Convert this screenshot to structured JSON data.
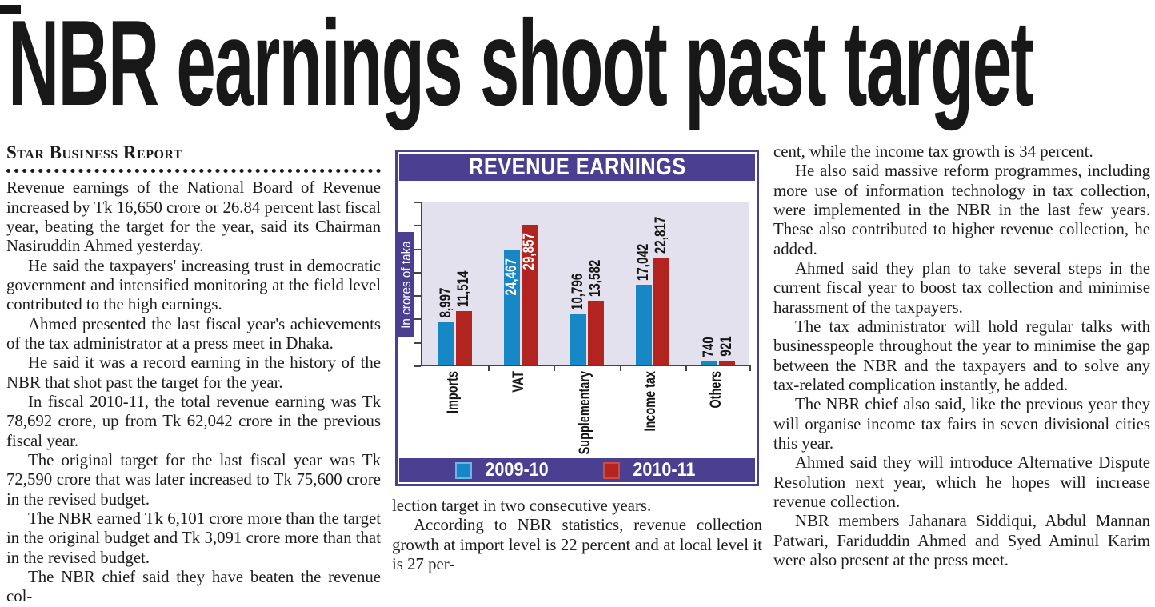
{
  "page": {
    "headline": "NBR earnings shoot past target",
    "byline": "Star Business Report"
  },
  "article": {
    "left_column": [
      "Revenue earnings of the National Board of Revenue increased by Tk 16,650 crore or 26.84 percent last fiscal year, beating the target for the year, said its Chairman Nasiruddin Ahmed yesterday.",
      "He said the taxpayers' increasing trust in democratic government and intensified monitoring at the field level contributed to the high earnings.",
      "Ahmed presented the last fiscal year's achievements of the tax administrator at a press meet in Dhaka.",
      "He said it was a record earning in the history of the NBR that shot past the target for the year.",
      "In fiscal 2010-11, the total revenue earning was Tk 78,692 crore, up from Tk 62,042 crore in the previous fiscal year.",
      "The original target for the last fiscal year was Tk 72,590 crore that was later increased to Tk 75,600 crore in the revised budget.",
      "The NBR earned Tk 6,101 crore more than the target in the original budget and Tk 3,091 crore more than that in the revised budget.",
      "The NBR chief said they have beaten the revenue col-"
    ],
    "middle_column": [
      "lection target in two consecutive years.",
      "According to NBR statistics, revenue collection growth at import level is 22 percent and at local level it is 27 per-"
    ],
    "right_column": [
      "cent, while the income tax growth is 34 percent.",
      "He also said massive reform programmes, including more use of information technology in tax collection, were implemented in the NBR in the last few years. These also contributed to higher revenue collection, he added.",
      "Ahmed said they plan to take several steps in the current fiscal year to boost tax collection and minimise harassment of the taxpayers.",
      "The tax administrator will hold regular talks with businesspeople throughout the year to minimise the gap between the NBR and the taxpayers and to solve any tax-related complication instantly, he added.",
      "The NBR chief also said, like the previous year they will organise income tax fairs in seven divisional cities this year.",
      "Ahmed said they will introduce Alternative Dispute Resolution next year, which he hopes will increase revenue collection.",
      "NBR members Jahanara Siddiqui, Abdul Mannan Patwari, Fariduddin Ahmed and Syed Aminul Karim were also present at the press meet."
    ]
  },
  "chart_data": {
    "type": "bar",
    "title": "REVENUE EARNINGS",
    "ylabel": "In crores of taka",
    "xlabel": "",
    "categories": [
      "Imports",
      "VAT",
      "Supplementary",
      "Income tax",
      "Others"
    ],
    "series": [
      {
        "name": "2009-10",
        "color": "#1787c5",
        "values": [
          8997,
          24467,
          10796,
          17042,
          740
        ],
        "labels": [
          "8,997",
          "24,467",
          "10,796",
          "17,042",
          "740"
        ]
      },
      {
        "name": "2010-11",
        "color": "#b2241f",
        "values": [
          11514,
          29857,
          13582,
          22817,
          921
        ],
        "labels": [
          "11,514",
          "29,857",
          "13,582",
          "22,817",
          "921"
        ]
      }
    ],
    "ylim": [
      0,
      35000
    ],
    "y_tick_step": 5000,
    "y_tick_labels_visible": false,
    "grid": false,
    "legend_position": "bottom",
    "accent_color": "#4a3f91",
    "plot_background": "#e4e1ee"
  }
}
